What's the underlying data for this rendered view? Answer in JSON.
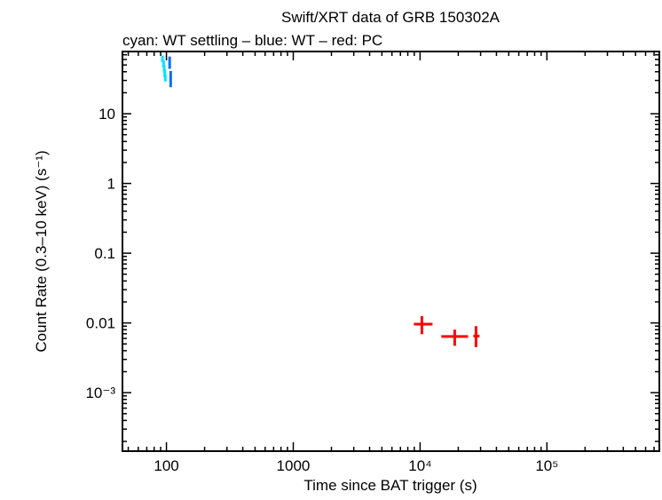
{
  "chart_data": {
    "type": "scatter",
    "title": "Swift/XRT data of GRB 150302A",
    "subtitle": "cyan: WT settling – blue: WT – red: PC",
    "xlabel": "Time since BAT trigger (s)",
    "ylabel": "Count Rate (0.3–10 keV) (s⁻¹)",
    "xscale": "log",
    "yscale": "log",
    "xlim": [
      45,
      770000
    ],
    "ylim": [
      0.000145,
      78
    ],
    "x_ticks": [
      {
        "v": 100,
        "label": "100"
      },
      {
        "v": 1000,
        "label": "1000"
      },
      {
        "v": 10000,
        "label": "10⁴"
      },
      {
        "v": 100000,
        "label": "10⁵"
      }
    ],
    "y_ticks": [
      {
        "v": 10,
        "label": "10"
      },
      {
        "v": 1,
        "label": "1"
      },
      {
        "v": 0.1,
        "label": "0.1"
      },
      {
        "v": 0.01,
        "label": "0.01"
      },
      {
        "v": 0.001,
        "label": "10⁻³"
      }
    ],
    "grid": false,
    "series": [
      {
        "name": "WT settling",
        "color": "#00e5ff",
        "points": [
          {
            "x": 93,
            "xlo": 92,
            "xhi": 94,
            "y": 62,
            "ylo": 55,
            "yhi": 68
          },
          {
            "x": 95,
            "xlo": 94,
            "xhi": 96,
            "y": 52,
            "ylo": 46,
            "yhi": 58
          },
          {
            "x": 96,
            "xlo": 95,
            "xhi": 97,
            "y": 44,
            "ylo": 39,
            "yhi": 50
          },
          {
            "x": 97,
            "xlo": 96,
            "xhi": 98,
            "y": 38,
            "ylo": 33,
            "yhi": 43
          },
          {
            "x": 98,
            "xlo": 97,
            "xhi": 99,
            "y": 33,
            "ylo": 29,
            "yhi": 37
          }
        ]
      },
      {
        "name": "WT",
        "color": "#0a6cff",
        "points": [
          {
            "x": 106,
            "xlo": 105,
            "xhi": 107,
            "y": 54,
            "ylo": 44,
            "yhi": 66
          },
          {
            "x": 108,
            "xlo": 107,
            "xhi": 110,
            "y": 33,
            "ylo": 24,
            "yhi": 41
          }
        ]
      },
      {
        "name": "PC",
        "color": "#ff0000",
        "points": [
          {
            "x": 10330,
            "xlo": 8930,
            "xhi": 12530,
            "y": 0.0096,
            "ylo": 0.0069,
            "yhi": 0.0125
          },
          {
            "x": 18750,
            "xlo": 14700,
            "xhi": 23900,
            "y": 0.0064,
            "ylo": 0.0047,
            "yhi": 0.008
          },
          {
            "x": 27600,
            "xlo": 26300,
            "xhi": 29400,
            "y": 0.0065,
            "ylo": 0.0045,
            "yhi": 0.009
          }
        ]
      }
    ]
  }
}
